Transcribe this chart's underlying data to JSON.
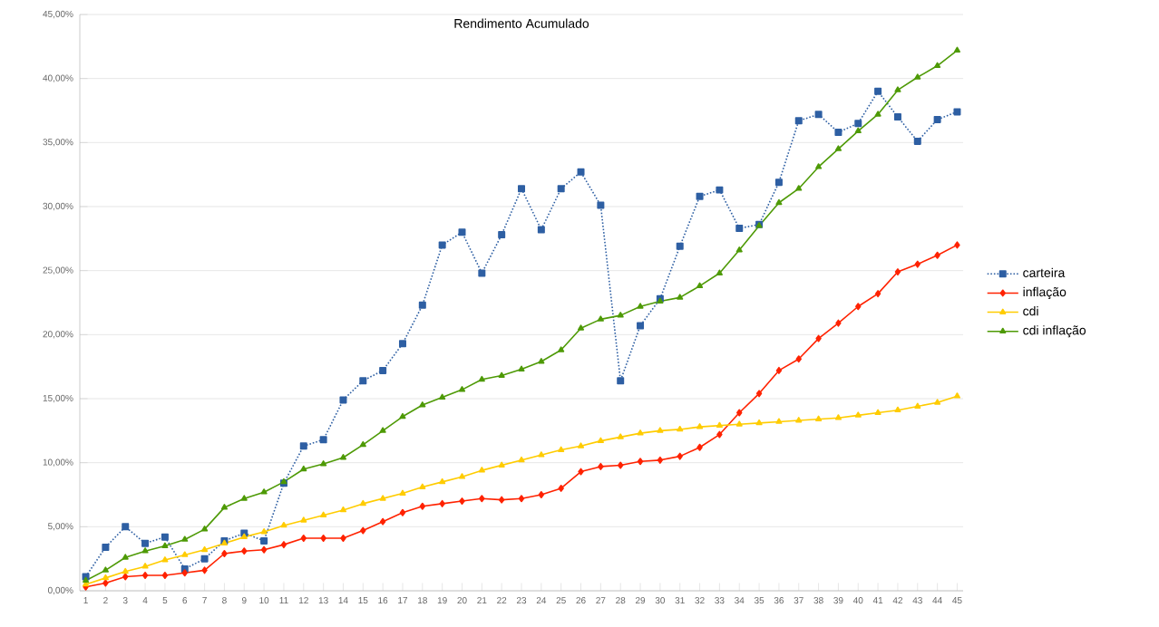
{
  "chart_data": {
    "type": "line",
    "title": "Rendimento Acumulado",
    "categories": [
      "1",
      "2",
      "3",
      "4",
      "5",
      "6",
      "7",
      "8",
      "9",
      "10",
      "11",
      "12",
      "13",
      "14",
      "15",
      "16",
      "17",
      "18",
      "19",
      "20",
      "21",
      "22",
      "23",
      "24",
      "25",
      "26",
      "27",
      "28",
      "29",
      "30",
      "31",
      "32",
      "33",
      "34",
      "35",
      "36",
      "37",
      "38",
      "39",
      "40",
      "41",
      "42",
      "43",
      "44",
      "45"
    ],
    "series": [
      {
        "name": "carteira",
        "color": "#2e5fa3",
        "marker": "square",
        "line_style": "dotted",
        "values": [
          1.1,
          3.4,
          5.0,
          3.7,
          4.2,
          1.7,
          2.5,
          3.9,
          4.5,
          3.9,
          8.4,
          11.3,
          11.8,
          14.9,
          16.4,
          17.2,
          19.3,
          22.3,
          27.0,
          28.0,
          24.8,
          27.8,
          31.4,
          28.2,
          31.4,
          32.7,
          30.1,
          16.4,
          20.7,
          22.8,
          26.9,
          30.8,
          31.3,
          28.3,
          28.6,
          31.9,
          36.7,
          37.2,
          35.8,
          36.5,
          39.0,
          37.0,
          35.1,
          36.8,
          37.4
        ]
      },
      {
        "name": "inflação",
        "color": "#ff2200",
        "marker": "diamond",
        "line_style": "solid",
        "values": [
          0.3,
          0.6,
          1.1,
          1.2,
          1.2,
          1.4,
          1.6,
          2.9,
          3.1,
          3.2,
          3.6,
          4.1,
          4.1,
          4.1,
          4.7,
          5.4,
          6.1,
          6.6,
          6.8,
          7.0,
          7.2,
          7.1,
          7.2,
          7.5,
          8.0,
          9.3,
          9.7,
          9.8,
          10.1,
          10.2,
          10.5,
          11.2,
          12.2,
          13.9,
          15.4,
          17.2,
          18.1,
          19.7,
          20.9,
          22.2,
          23.2,
          24.9,
          25.5,
          26.2,
          27.0
        ]
      },
      {
        "name": "cdi",
        "color": "#ffcc00",
        "marker": "triangle",
        "line_style": "solid",
        "values": [
          0.5,
          1.0,
          1.5,
          1.9,
          2.4,
          2.8,
          3.2,
          3.7,
          4.2,
          4.6,
          5.1,
          5.5,
          5.9,
          6.3,
          6.8,
          7.2,
          7.6,
          8.1,
          8.5,
          8.9,
          9.4,
          9.8,
          10.2,
          10.6,
          11.0,
          11.3,
          11.7,
          12.0,
          12.3,
          12.5,
          12.6,
          12.8,
          12.9,
          13.0,
          13.1,
          13.2,
          13.3,
          13.4,
          13.5,
          13.7,
          13.9,
          14.1,
          14.4,
          14.7,
          15.2
        ]
      },
      {
        "name": "cdi inflação",
        "color": "#4e9a06",
        "marker": "triangle",
        "line_style": "solid",
        "values": [
          0.8,
          1.6,
          2.6,
          3.1,
          3.5,
          4.0,
          4.8,
          6.5,
          7.2,
          7.7,
          8.5,
          9.5,
          9.9,
          10.4,
          11.4,
          12.5,
          13.6,
          14.5,
          15.1,
          15.7,
          16.5,
          16.8,
          17.3,
          17.9,
          18.8,
          20.5,
          21.2,
          21.5,
          22.2,
          22.6,
          22.9,
          23.8,
          24.8,
          26.6,
          28.5,
          30.3,
          31.4,
          33.1,
          34.5,
          35.9,
          37.2,
          39.1,
          40.1,
          41.0,
          42.2
        ]
      }
    ],
    "ylim": [
      0,
      45
    ],
    "yticks": [
      {
        "value": 0,
        "label": "0,00%"
      },
      {
        "value": 5,
        "label": "5,00%"
      },
      {
        "value": 10,
        "label": "10,00%"
      },
      {
        "value": 15,
        "label": "15,00%"
      },
      {
        "value": 20,
        "label": "20,00%"
      },
      {
        "value": 25,
        "label": "25,00%"
      },
      {
        "value": 30,
        "label": "30,00%"
      },
      {
        "value": 35,
        "label": "35,00%"
      },
      {
        "value": 40,
        "label": "40,00%"
      },
      {
        "value": 45,
        "label": "45,00%"
      }
    ],
    "grid": "y",
    "legend": "right"
  }
}
